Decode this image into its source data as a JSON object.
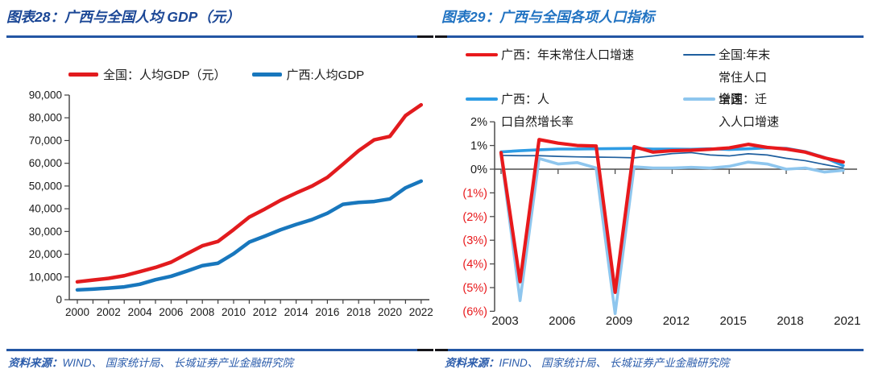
{
  "left_figure": {
    "title": "图表28：广西与全国人均 GDP（元）",
    "source_prefix": "资料来源：",
    "source_rest": "WIND、 国家统计局、 长城证券产业金融研究院",
    "legend": [
      {
        "label": "全国：人均GDP（元）",
        "color": "#e21b1e"
      },
      {
        "label": "广西:人均GDP",
        "color": "#1877bd"
      }
    ]
  },
  "right_figure": {
    "title": "图表29：广西与全国各项人口指标",
    "source_prefix": "资料来源：",
    "source_rest": "IFIND、 国家统计局、 长城证券产业金融研究院",
    "legend": [
      {
        "lines": [
          "广西：年末常住人口增速"
        ],
        "color": "#e8191c"
      },
      {
        "lines": [
          "全国:年末",
          "常住人口",
          "增速"
        ],
        "color": "#1f5f9e"
      },
      {
        "lines": [
          "广西：人",
          "口自然增长率"
        ],
        "color": "#2e9ce4"
      },
      {
        "lines": [
          "全国：迁",
          "入人口增速"
        ],
        "color": "#8ec6ee"
      }
    ]
  },
  "chart_data": [
    {
      "type": "line",
      "title": "广西与全国人均 GDP（元）",
      "x": [
        2000,
        2001,
        2002,
        2003,
        2004,
        2005,
        2006,
        2007,
        2008,
        2009,
        2010,
        2011,
        2012,
        2013,
        2014,
        2015,
        2016,
        2017,
        2018,
        2019,
        2020,
        2021,
        2022
      ],
      "series": [
        {
          "key": "national-per-capita-gdp",
          "name": "全国：人均GDP（元）",
          "color": "#e21b1e",
          "width": 4.5,
          "values": [
            7858,
            8622,
            9398,
            10542,
            12336,
            14185,
            16500,
            20169,
            23708,
            25608,
            30808,
            36302,
            39874,
            43684,
            46912,
            49922,
            53783,
            59592,
            65534,
            70328,
            71828,
            80976,
            85698
          ]
        },
        {
          "key": "guangxi-per-capita-gdp",
          "name": "广西:人均GDP",
          "color": "#1877bd",
          "width": 4.5,
          "values": [
            4319,
            4668,
            5099,
            5639,
            6791,
            8788,
            10296,
            12555,
            14966,
            16045,
            20219,
            25326,
            27952,
            30741,
            33090,
            35190,
            38027,
            41955,
            42800,
            43200,
            44309,
            49206,
            52164
          ]
        }
      ],
      "ylim": [
        0,
        90000
      ],
      "ytick_step": 10000,
      "xtick_label_every": 2,
      "grid": false,
      "legend_position": "top"
    },
    {
      "type": "line",
      "title": "广西与全国各项人口指标",
      "x": [
        2003,
        2004,
        2005,
        2006,
        2007,
        2008,
        2009,
        2010,
        2011,
        2012,
        2013,
        2014,
        2015,
        2016,
        2017,
        2018,
        2019,
        2020,
        2021
      ],
      "series": [
        {
          "key": "guangxi-resident-growth",
          "name": "广西：年末常住人口增速",
          "color": "#e8191c",
          "width": 4.2,
          "values": [
            0.7,
            -4.75,
            1.25,
            1.1,
            1.0,
            0.98,
            -5.2,
            0.95,
            0.72,
            0.78,
            0.8,
            0.84,
            0.9,
            1.05,
            0.92,
            0.85,
            0.72,
            0.48,
            0.3
          ]
        },
        {
          "key": "national-resident-growth",
          "name": "全国:年末常住人口增速",
          "color": "#1f5f9e",
          "width": 1.7,
          "values": [
            0.58,
            0.57,
            0.57,
            0.54,
            0.52,
            0.51,
            0.5,
            0.48,
            0.56,
            0.66,
            0.7,
            0.6,
            0.56,
            0.65,
            0.6,
            0.46,
            0.36,
            0.2,
            0.05
          ]
        },
        {
          "key": "guangxi-natural-growth",
          "name": "广西：人口自然增长率",
          "color": "#2e9ce4",
          "width": 3.6,
          "values": [
            0.73,
            0.78,
            0.82,
            0.85,
            0.85,
            0.86,
            0.87,
            0.88,
            0.85,
            0.85,
            0.84,
            0.86,
            0.83,
            0.86,
            0.9,
            0.88,
            0.74,
            0.5,
            0.15
          ]
        },
        {
          "key": "national-migration-growth",
          "name": "全国：迁入人口增速",
          "color": "#8ec6ee",
          "width": 3.6,
          "values": [
            0.62,
            -5.55,
            0.45,
            0.22,
            0.28,
            0.05,
            -6.1,
            0.1,
            0.05,
            0.05,
            0.08,
            0.05,
            0.12,
            0.3,
            0.22,
            0.0,
            0.05,
            -0.12,
            -0.05
          ]
        }
      ],
      "ylim": [
        -6,
        2
      ],
      "ytick_step": 1,
      "ytick_labels": [
        "2%",
        "1%",
        "0%",
        "(1%)",
        "(2%)",
        "(3%)",
        "(4%)",
        "(5%)",
        "(6%)"
      ],
      "negative_label_color": "#e8191c",
      "xtick_every": 3,
      "grid": false,
      "legend_position": "top"
    }
  ]
}
